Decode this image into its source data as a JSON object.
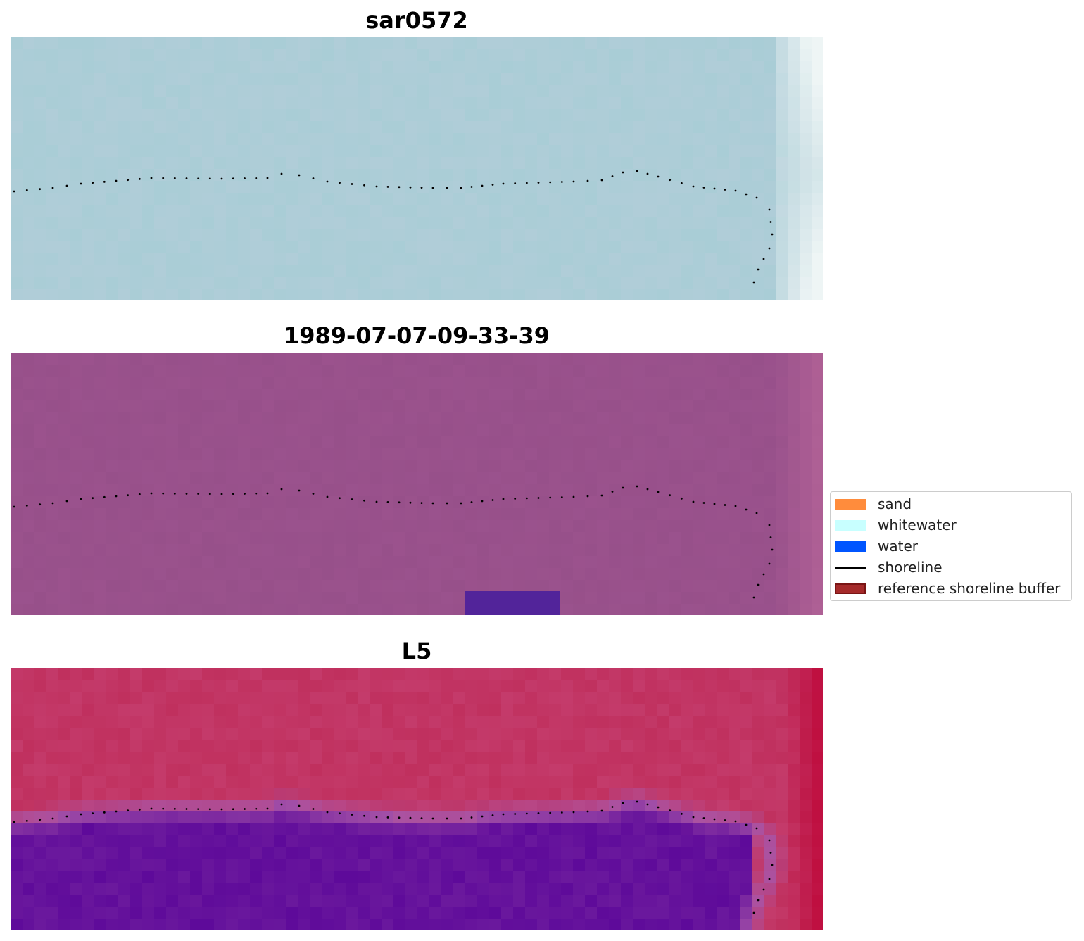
{
  "panels": [
    {
      "title": "sar0572"
    },
    {
      "title": "1989-07-07-09-33-39"
    },
    {
      "title": "L5"
    }
  ],
  "legend": {
    "items": [
      {
        "label": "sand",
        "color": "#ff8c3c",
        "kind": "patch"
      },
      {
        "label": "whitewater",
        "color": "#c8ffff",
        "kind": "patch"
      },
      {
        "label": "water",
        "color": "#0055ff",
        "kind": "patch"
      },
      {
        "label": "shoreline",
        "color": "#000000",
        "kind": "line"
      },
      {
        "label": "reference shoreline buffer",
        "color": "#a52a2a",
        "edge": "#7a1515",
        "kind": "patch"
      }
    ]
  },
  "colors": {
    "rgb_panel_base": "#a9cdd6",
    "rgb_panel_land": "#eef5f5",
    "nir_panel_base": "#97508a",
    "nir_panel_land": "#b66598",
    "nir_panel_patch": "#52249a",
    "ndwi_water": "#5e0a9a",
    "ndwi_land": "#c0305e",
    "ndwi_edge": "#a855a8",
    "shoreline_dots": "#000000"
  }
}
